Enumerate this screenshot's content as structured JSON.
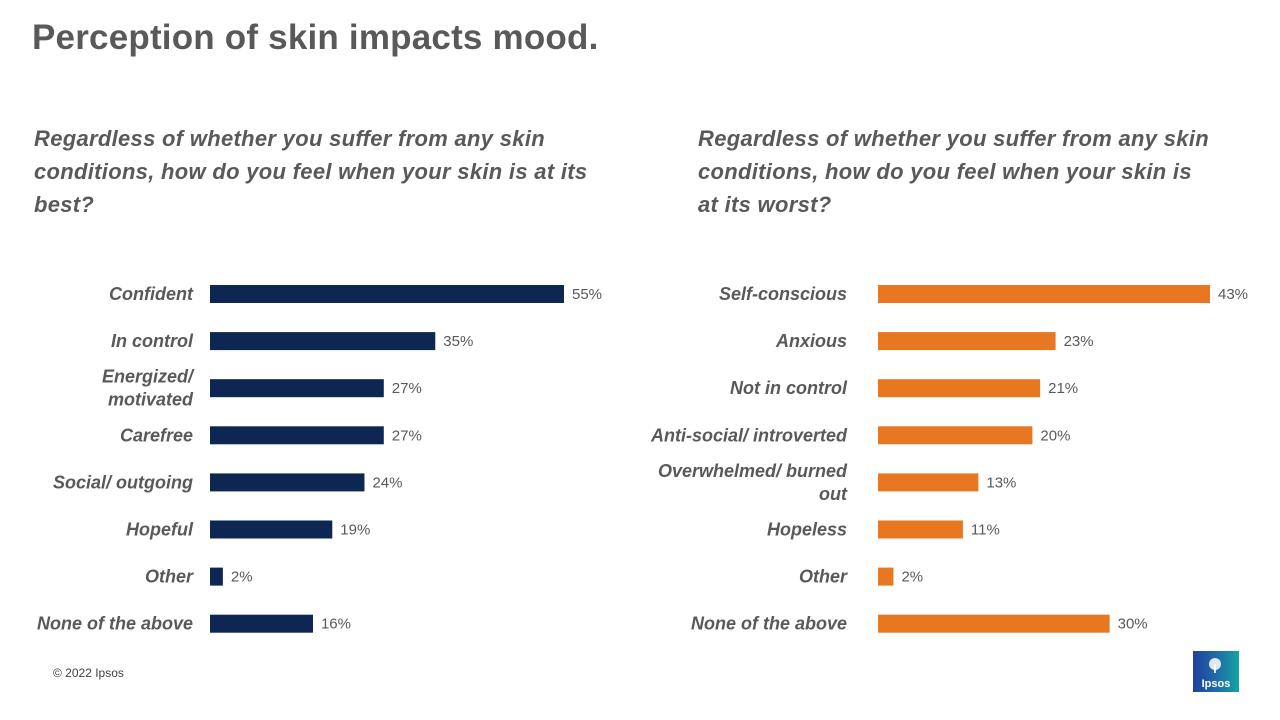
{
  "title": "Perception of skin impacts mood.",
  "footer": "© 2022 Ipsos",
  "logo_text": "Ipsos",
  "colors": {
    "left_bar": "#0d2652",
    "right_bar": "#e87722",
    "text": "#595959"
  },
  "chart_data": [
    {
      "type": "bar",
      "orientation": "horizontal",
      "title": "Regardless of whether you suffer from any skin conditions, how do you feel when your skin is at its best?",
      "categories": [
        [
          "Confident"
        ],
        [
          "In control"
        ],
        [
          "Energized/",
          "motivated"
        ],
        [
          "Carefree"
        ],
        [
          "Social/ outgoing"
        ],
        [
          "Hopeful"
        ],
        [
          "Other"
        ],
        [
          "None of the above"
        ]
      ],
      "values": [
        55,
        35,
        27,
        27,
        24,
        19,
        2,
        16
      ],
      "value_labels": [
        "55%",
        "35%",
        "27%",
        "27%",
        "24%",
        "19%",
        "2%",
        "16%"
      ],
      "unit": "%",
      "xlim": [
        0,
        55
      ]
    },
    {
      "type": "bar",
      "orientation": "horizontal",
      "title": "Regardless of whether you suffer from any skin conditions, how do you feel when your skin is at its worst?",
      "categories": [
        [
          "Self-conscious"
        ],
        [
          "Anxious"
        ],
        [
          "Not in control"
        ],
        [
          "Anti-social/ introverted"
        ],
        [
          "Overwhelmed/ burned",
          "out"
        ],
        [
          "Hopeless"
        ],
        [
          "Other"
        ],
        [
          "None of the above"
        ]
      ],
      "values": [
        43,
        23,
        21,
        20,
        13,
        11,
        2,
        30
      ],
      "value_labels": [
        "43%",
        "23%",
        "21%",
        "20%",
        "13%",
        "11%",
        "2%",
        "30%"
      ],
      "unit": "%",
      "xlim": [
        0,
        43
      ]
    }
  ]
}
